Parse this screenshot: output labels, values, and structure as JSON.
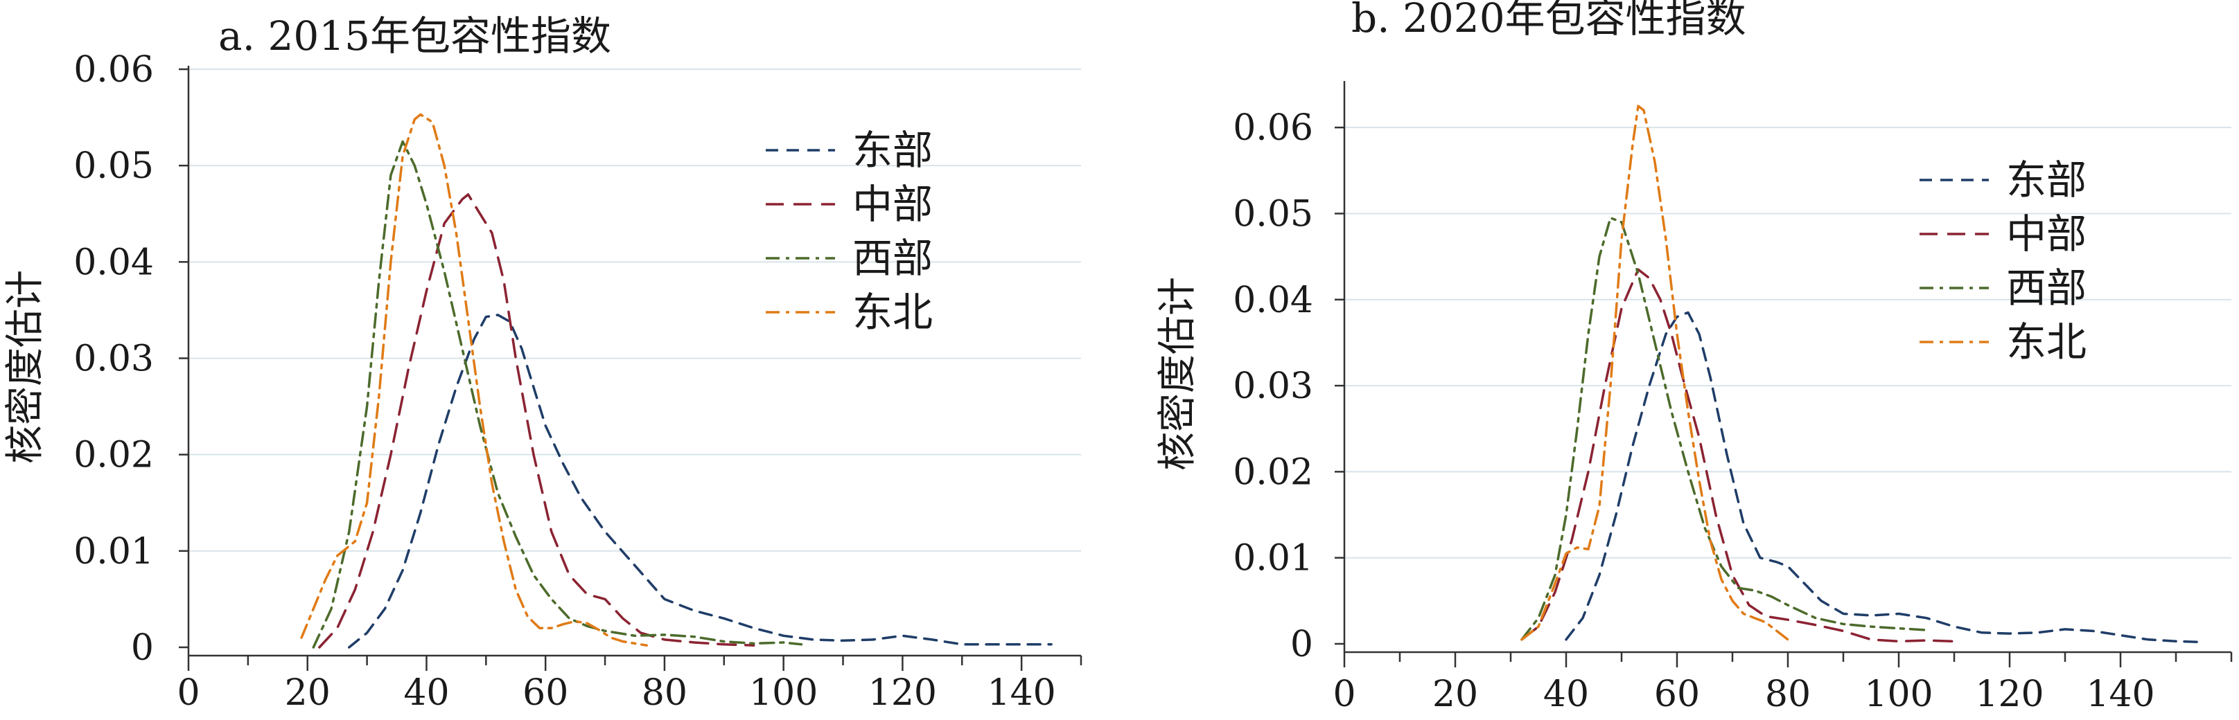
{
  "chart_data": [
    {
      "type": "line",
      "title": "a. 2015年包容性指数",
      "xlabel": "",
      "ylabel": "核密度估计",
      "xlim": [
        0,
        150
      ],
      "ylim": [
        0,
        0.06
      ],
      "xticks": [
        0,
        20,
        40,
        60,
        80,
        100,
        120,
        140
      ],
      "xtick_labels": [
        "0",
        "20",
        "40",
        "60",
        "80",
        "100",
        "120",
        "140"
      ],
      "yticks": [
        0,
        0.01,
        0.02,
        0.03,
        0.04,
        0.05,
        0.06
      ],
      "ytick_labels": [
        "0",
        "0.01",
        "0.02",
        "0.03",
        "0.04",
        "0.05",
        "0.06"
      ],
      "grid": "horizontal",
      "legend_position": "top-right",
      "series": [
        {
          "name": "东部",
          "color": "#1f3d68",
          "dash": "dash",
          "x": [
            27,
            30,
            33,
            36,
            39,
            42,
            45,
            48,
            50,
            52,
            54,
            56,
            58,
            60,
            63,
            66,
            70,
            75,
            80,
            85,
            90,
            95,
            100,
            105,
            110,
            115,
            120,
            125,
            130,
            135,
            140,
            145
          ],
          "y": [
            0,
            0.0015,
            0.004,
            0.008,
            0.014,
            0.021,
            0.027,
            0.032,
            0.0343,
            0.0345,
            0.0338,
            0.031,
            0.027,
            0.023,
            0.019,
            0.0155,
            0.012,
            0.0085,
            0.005,
            0.0038,
            0.003,
            0.002,
            0.0012,
            0.0008,
            0.0007,
            0.0008,
            0.0012,
            0.0008,
            0.0003,
            0.0003,
            0.0003,
            0.0003
          ]
        },
        {
          "name": "中部",
          "color": "#8b2332",
          "dash": "longdash",
          "x": [
            22,
            25,
            28,
            31,
            34,
            37,
            40,
            43,
            46,
            47,
            49,
            51,
            53,
            55,
            58,
            61,
            64,
            67,
            70,
            73,
            76,
            80,
            85,
            90,
            95
          ],
          "y": [
            0,
            0.002,
            0.006,
            0.012,
            0.02,
            0.029,
            0.037,
            0.044,
            0.0465,
            0.047,
            0.045,
            0.043,
            0.038,
            0.03,
            0.02,
            0.012,
            0.0075,
            0.0055,
            0.005,
            0.003,
            0.0015,
            0.0008,
            0.0005,
            0.0003,
            0.0002
          ]
        },
        {
          "name": "西部",
          "color": "#4c6b2b",
          "dash": "dashdot",
          "x": [
            21,
            24,
            27,
            30,
            32,
            34,
            36,
            38,
            40,
            43,
            46,
            49,
            52,
            55,
            58,
            61,
            64,
            67,
            70,
            75,
            80,
            85,
            90,
            95,
            100,
            103
          ],
          "y": [
            0,
            0.004,
            0.012,
            0.025,
            0.038,
            0.049,
            0.0525,
            0.05,
            0.046,
            0.039,
            0.031,
            0.023,
            0.016,
            0.0115,
            0.0075,
            0.005,
            0.003,
            0.0022,
            0.0017,
            0.0012,
            0.0013,
            0.0011,
            0.0006,
            0.0004,
            0.0005,
            0.0003
          ]
        },
        {
          "name": "东北",
          "color": "#e07b16",
          "dash": "dashdot",
          "x": [
            19,
            21,
            23,
            25,
            27,
            28,
            30,
            32,
            34,
            36,
            38,
            39,
            41,
            43,
            45,
            47,
            49,
            51,
            53,
            55,
            57,
            59,
            61,
            63,
            65,
            67,
            69,
            71,
            73,
            75,
            77
          ],
          "y": [
            0.001,
            0.004,
            0.007,
            0.0095,
            0.0105,
            0.011,
            0.015,
            0.026,
            0.04,
            0.051,
            0.0548,
            0.0553,
            0.0545,
            0.05,
            0.043,
            0.034,
            0.025,
            0.017,
            0.011,
            0.006,
            0.0032,
            0.002,
            0.002,
            0.0024,
            0.0027,
            0.0025,
            0.0018,
            0.001,
            0.0006,
            0.0004,
            0.0002
          ]
        }
      ]
    },
    {
      "type": "line",
      "title": "b. 2020年包容性指数",
      "xlabel": "",
      "ylabel": "核密度估计",
      "xlim": [
        0,
        160
      ],
      "ylim": [
        0,
        0.065
      ],
      "xticks": [
        0,
        20,
        40,
        60,
        80,
        100,
        120,
        140
      ],
      "xtick_labels": [
        "0",
        "20",
        "40",
        "60",
        "80",
        "100",
        "120",
        "140"
      ],
      "yticks": [
        0,
        0.01,
        0.02,
        0.03,
        0.04,
        0.05,
        0.06
      ],
      "ytick_labels": [
        "0",
        "0.01",
        "0.02",
        "0.03",
        "0.04",
        "0.05",
        "0.06"
      ],
      "grid": "horizontal",
      "legend_position": "top-right",
      "series": [
        {
          "name": "东部",
          "color": "#1f3d68",
          "dash": "dash",
          "x": [
            40,
            43,
            46,
            49,
            52,
            55,
            58,
            60,
            62,
            64,
            66,
            69,
            72,
            75,
            78,
            80,
            83,
            86,
            90,
            95,
            100,
            105,
            110,
            115,
            120,
            125,
            130,
            135,
            140,
            145,
            150,
            155
          ],
          "y": [
            0.0005,
            0.003,
            0.008,
            0.015,
            0.023,
            0.03,
            0.036,
            0.038,
            0.0385,
            0.036,
            0.031,
            0.022,
            0.014,
            0.01,
            0.0095,
            0.009,
            0.007,
            0.005,
            0.0035,
            0.0033,
            0.0035,
            0.003,
            0.002,
            0.0013,
            0.0012,
            0.0013,
            0.0017,
            0.0015,
            0.001,
            0.0005,
            0.0003,
            0.0002
          ]
        },
        {
          "name": "中部",
          "color": "#8b2332",
          "dash": "longdash",
          "x": [
            32,
            35,
            38,
            41,
            44,
            47,
            50,
            53,
            55,
            57,
            59,
            61,
            64,
            67,
            70,
            73,
            76,
            80,
            85,
            90,
            95,
            100,
            105,
            110
          ],
          "y": [
            0.0005,
            0.002,
            0.006,
            0.012,
            0.02,
            0.03,
            0.039,
            0.0435,
            0.0425,
            0.04,
            0.036,
            0.031,
            0.024,
            0.015,
            0.008,
            0.0045,
            0.0032,
            0.0028,
            0.0022,
            0.0015,
            0.0005,
            0.0003,
            0.0004,
            0.0003
          ]
        },
        {
          "name": "西部",
          "color": "#4c6b2b",
          "dash": "dashdot",
          "x": [
            32,
            35,
            38,
            40,
            42,
            44,
            46,
            48,
            50,
            53,
            56,
            59,
            62,
            65,
            68,
            71,
            74,
            77,
            80,
            85,
            90,
            95,
            100,
            105
          ],
          "y": [
            0.0005,
            0.003,
            0.008,
            0.015,
            0.025,
            0.036,
            0.045,
            0.0495,
            0.049,
            0.043,
            0.035,
            0.027,
            0.02,
            0.0135,
            0.009,
            0.0065,
            0.0062,
            0.0055,
            0.0045,
            0.003,
            0.0023,
            0.002,
            0.0018,
            0.0016
          ]
        },
        {
          "name": "东北",
          "color": "#e07b16",
          "dash": "dashdot",
          "x": [
            32,
            35,
            38,
            40,
            42,
            44,
            46,
            48,
            50,
            52,
            53,
            54,
            56,
            58,
            60,
            62,
            64,
            66,
            68,
            70,
            72,
            74,
            76,
            78,
            80
          ],
          "y": [
            0.0005,
            0.002,
            0.007,
            0.0105,
            0.0112,
            0.011,
            0.016,
            0.03,
            0.047,
            0.058,
            0.0625,
            0.062,
            0.056,
            0.047,
            0.036,
            0.027,
            0.019,
            0.012,
            0.0075,
            0.005,
            0.0035,
            0.003,
            0.0025,
            0.0015,
            0.0005
          ]
        }
      ]
    }
  ]
}
